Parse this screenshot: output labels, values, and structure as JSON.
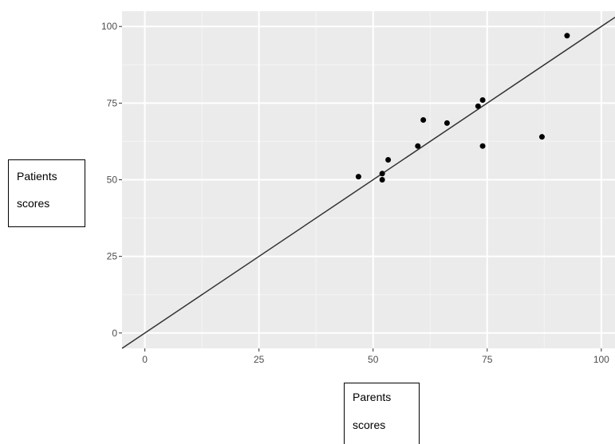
{
  "chart_data": {
    "type": "scatter",
    "xlabel_lines": [
      "Parents",
      "scores"
    ],
    "ylabel_lines": [
      "Patients",
      "scores"
    ],
    "xlim": [
      -5,
      103
    ],
    "ylim": [
      -5,
      105
    ],
    "x_ticks": [
      0,
      25,
      50,
      75,
      100
    ],
    "y_ticks": [
      0,
      25,
      50,
      75,
      100
    ],
    "grid": true,
    "points": [
      {
        "x": 46.8,
        "y": 51
      },
      {
        "x": 52,
        "y": 52
      },
      {
        "x": 52,
        "y": 50
      },
      {
        "x": 53.3,
        "y": 56.5
      },
      {
        "x": 59.8,
        "y": 61
      },
      {
        "x": 61,
        "y": 69.5
      },
      {
        "x": 66.2,
        "y": 68.5
      },
      {
        "x": 73,
        "y": 74
      },
      {
        "x": 74,
        "y": 76
      },
      {
        "x": 74,
        "y": 61
      },
      {
        "x": 87,
        "y": 64
      },
      {
        "x": 92.5,
        "y": 97
      }
    ],
    "reference_line": {
      "slope": 1,
      "intercept": 0
    }
  },
  "colors": {
    "panel_bg": "#ebebeb",
    "grid_major": "#ffffff",
    "grid_minor": "#f5f5f5",
    "point": "#000000",
    "line": "#333333",
    "tick_text": "#4d4d4d"
  }
}
